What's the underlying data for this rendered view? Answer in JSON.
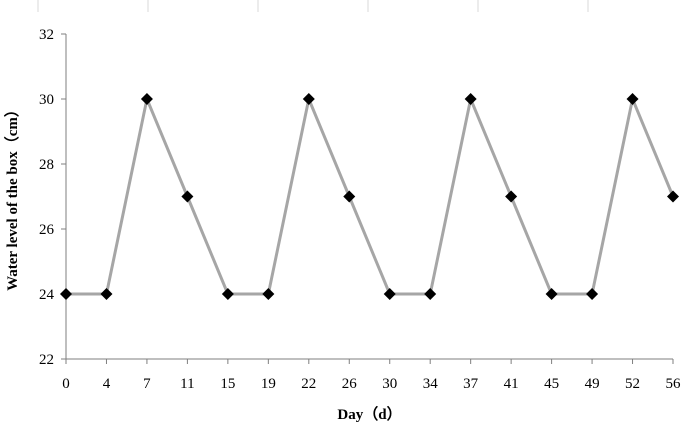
{
  "chart_data": {
    "type": "line",
    "title": "",
    "xlabel": "Day（d）",
    "ylabel": "Water level of the box（cm）",
    "x": [
      0,
      4,
      7,
      11,
      15,
      19,
      22,
      26,
      30,
      34,
      37,
      41,
      45,
      49,
      52,
      56
    ],
    "x_tick_labels": [
      "0",
      "4",
      "7",
      "11",
      "15",
      "19",
      "22",
      "26",
      "30",
      "34",
      "37",
      "41",
      "45",
      "49",
      "52",
      "56"
    ],
    "y_ticks": [
      22,
      24,
      26,
      28,
      30,
      32
    ],
    "y_tick_labels": [
      "22",
      "24",
      "26",
      "28",
      "30",
      "32"
    ],
    "ylim": [
      22,
      32
    ],
    "series": [
      {
        "values": [
          24,
          24,
          30,
          27,
          24,
          24,
          30,
          27,
          24,
          24,
          30,
          27,
          24,
          24,
          30,
          27
        ]
      }
    ],
    "grid": false,
    "legend": "none",
    "colors": {
      "line": "#a6a6a6",
      "marker": "#000000",
      "axis": "#7f7f7f"
    }
  }
}
